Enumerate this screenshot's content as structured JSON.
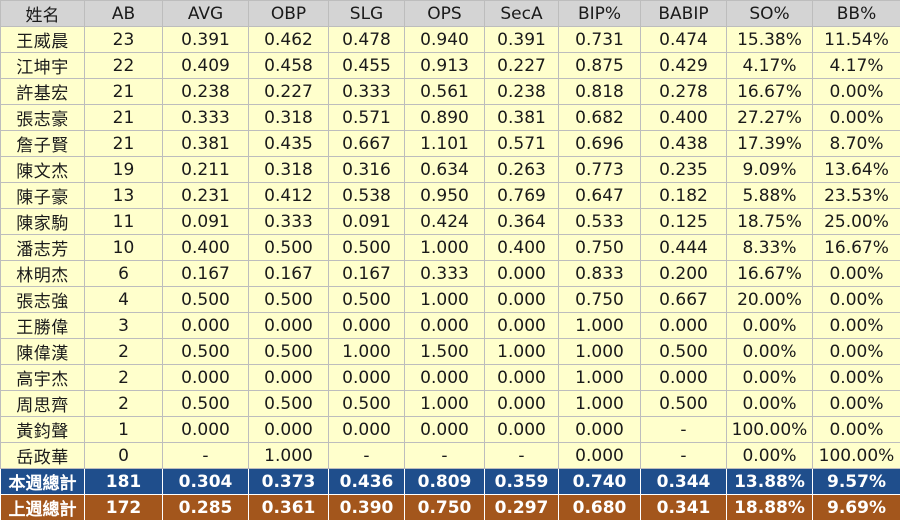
{
  "columns": [
    "姓名",
    "AB",
    "AVG",
    "OBP",
    "SLG",
    "OPS",
    "SecA",
    "BIP%",
    "BABIP",
    "SO%",
    "BB%"
  ],
  "rows": [
    [
      "王威晨",
      "23",
      "0.391",
      "0.462",
      "0.478",
      "0.940",
      "0.391",
      "0.731",
      "0.474",
      "15.38%",
      "11.54%"
    ],
    [
      "江坤宇",
      "22",
      "0.409",
      "0.458",
      "0.455",
      "0.913",
      "0.227",
      "0.875",
      "0.429",
      "4.17%",
      "4.17%"
    ],
    [
      "許基宏",
      "21",
      "0.238",
      "0.227",
      "0.333",
      "0.561",
      "0.238",
      "0.818",
      "0.278",
      "16.67%",
      "0.00%"
    ],
    [
      "張志豪",
      "21",
      "0.333",
      "0.318",
      "0.571",
      "0.890",
      "0.381",
      "0.682",
      "0.400",
      "27.27%",
      "0.00%"
    ],
    [
      "詹子賢",
      "21",
      "0.381",
      "0.435",
      "0.667",
      "1.101",
      "0.571",
      "0.696",
      "0.438",
      "17.39%",
      "8.70%"
    ],
    [
      "陳文杰",
      "19",
      "0.211",
      "0.318",
      "0.316",
      "0.634",
      "0.263",
      "0.773",
      "0.235",
      "9.09%",
      "13.64%"
    ],
    [
      "陳子豪",
      "13",
      "0.231",
      "0.412",
      "0.538",
      "0.950",
      "0.769",
      "0.647",
      "0.182",
      "5.88%",
      "23.53%"
    ],
    [
      "陳家駒",
      "11",
      "0.091",
      "0.333",
      "0.091",
      "0.424",
      "0.364",
      "0.533",
      "0.125",
      "18.75%",
      "25.00%"
    ],
    [
      "潘志芳",
      "10",
      "0.400",
      "0.500",
      "0.500",
      "1.000",
      "0.400",
      "0.750",
      "0.444",
      "8.33%",
      "16.67%"
    ],
    [
      "林明杰",
      "6",
      "0.167",
      "0.167",
      "0.167",
      "0.333",
      "0.000",
      "0.833",
      "0.200",
      "16.67%",
      "0.00%"
    ],
    [
      "張志強",
      "4",
      "0.500",
      "0.500",
      "0.500",
      "1.000",
      "0.000",
      "0.750",
      "0.667",
      "20.00%",
      "0.00%"
    ],
    [
      "王勝偉",
      "3",
      "0.000",
      "0.000",
      "0.000",
      "0.000",
      "0.000",
      "1.000",
      "0.000",
      "0.00%",
      "0.00%"
    ],
    [
      "陳偉漢",
      "2",
      "0.500",
      "0.500",
      "1.000",
      "1.500",
      "1.000",
      "1.000",
      "0.500",
      "0.00%",
      "0.00%"
    ],
    [
      "高宇杰",
      "2",
      "0.000",
      "0.000",
      "0.000",
      "0.000",
      "0.000",
      "1.000",
      "0.000",
      "0.00%",
      "0.00%"
    ],
    [
      "周思齊",
      "2",
      "0.500",
      "0.500",
      "0.500",
      "1.000",
      "0.000",
      "1.000",
      "0.500",
      "0.00%",
      "0.00%"
    ],
    [
      "黃鈞聲",
      "1",
      "0.000",
      "0.000",
      "0.000",
      "0.000",
      "0.000",
      "0.000",
      "-",
      "100.00%",
      "0.00%"
    ],
    [
      "岳政華",
      "0",
      "-",
      "1.000",
      "-",
      "-",
      "-",
      "0.000",
      "-",
      "0.00%",
      "100.00%"
    ]
  ],
  "totals": [
    [
      "本週總計",
      "181",
      "0.304",
      "0.373",
      "0.436",
      "0.809",
      "0.359",
      "0.740",
      "0.344",
      "13.88%",
      "9.57%"
    ],
    [
      "上週總計",
      "172",
      "0.285",
      "0.361",
      "0.390",
      "0.750",
      "0.297",
      "0.680",
      "0.341",
      "18.88%",
      "9.69%"
    ]
  ],
  "colors": {
    "header_bg": "#d4d4d4",
    "row_bg": "#ffffcc",
    "this_week_total_bg": "#1f4e8c",
    "last_week_total_bg": "#a3561c"
  }
}
